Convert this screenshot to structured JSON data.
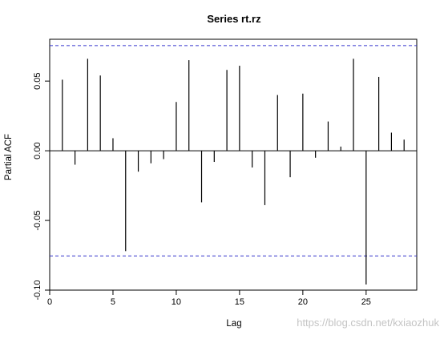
{
  "chart_data": {
    "type": "bar",
    "title": "Series  rt.rz",
    "xlabel": "Lag",
    "ylabel": "Partial ACF",
    "xlim": [
      0,
      29
    ],
    "ylim": [
      -0.1,
      0.08
    ],
    "x_ticks": [
      0,
      5,
      10,
      15,
      20,
      25
    ],
    "y_ticks": [
      -0.1,
      -0.05,
      0.0,
      0.05
    ],
    "y_tick_labels": [
      "-0.10",
      "-0.05",
      "0.00",
      "0.05"
    ],
    "confidence_bound": 0.0755,
    "lags": [
      1,
      2,
      3,
      4,
      5,
      6,
      7,
      8,
      9,
      10,
      11,
      12,
      13,
      14,
      15,
      16,
      17,
      18,
      19,
      20,
      21,
      22,
      23,
      24,
      25,
      26,
      27,
      28
    ],
    "values": [
      0.051,
      -0.01,
      0.066,
      0.054,
      0.009,
      -0.072,
      -0.015,
      -0.009,
      -0.006,
      0.035,
      0.065,
      -0.037,
      -0.008,
      0.058,
      0.061,
      -0.012,
      -0.039,
      0.04,
      -0.019,
      0.041,
      -0.005,
      0.021,
      0.003,
      0.066,
      -0.096,
      0.053,
      0.013,
      0.008
    ],
    "colors": {
      "bars": "#000000",
      "bounds": "#3333cc",
      "zero_line": "#000000"
    }
  },
  "watermark": "https://blog.csdn.net/kxiaozhuk"
}
